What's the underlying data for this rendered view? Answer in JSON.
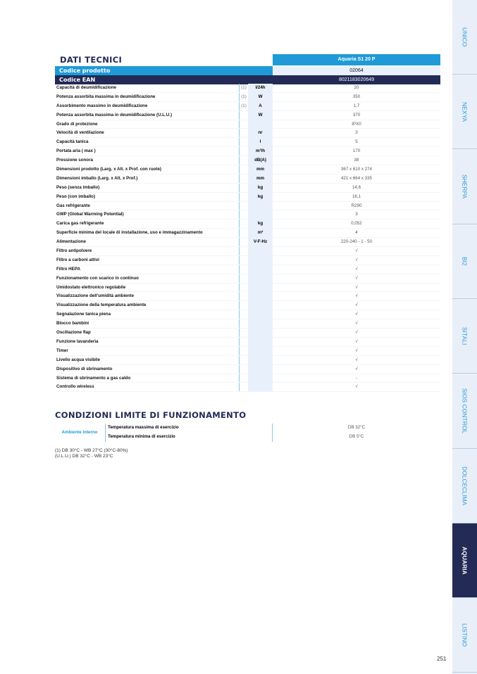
{
  "title": "DATI TECNICI",
  "model": "Aquaria S1 20 P",
  "codice_prodotto": {
    "label": "Codice prodotto",
    "value": "02064"
  },
  "codice_ean": {
    "label": "Codice EAN",
    "value": "8021183020649"
  },
  "rows": [
    {
      "label": "Capacità di deumidificazione",
      "note": "(1)",
      "unit": "l/24h",
      "value": "20"
    },
    {
      "label": "Potenza assorbita massima in deumidificazione",
      "note": "(1)",
      "unit": "W",
      "value": "350"
    },
    {
      "label": "Assorbimento massimo in deumidificazione",
      "note": "(1)",
      "unit": "A",
      "value": "1,7"
    },
    {
      "label": "Potenza assorbita massima in deumidificazione (U.L.U.)",
      "note": "",
      "unit": "W",
      "value": "370"
    },
    {
      "label": "Grado di protezione",
      "note": "",
      "unit": "",
      "value": "IPX0"
    },
    {
      "label": "Velocità di ventilazione",
      "note": "",
      "unit": "nr",
      "value": "3"
    },
    {
      "label": "Capacità tanica",
      "note": "",
      "unit": "l",
      "value": "5"
    },
    {
      "label": "Portata aria ( max )",
      "note": "",
      "unit": "m³/h",
      "value": "170"
    },
    {
      "label": "Pressione sonora",
      "note": "",
      "unit": "dB(A)",
      "value": "38"
    },
    {
      "label": "Dimensioni prodotto (Larg. x Alt. x Prof. con ruote)",
      "note": "",
      "unit": "mm",
      "value": "367 x 610 x 274"
    },
    {
      "label": "Dimensioni imballo (Larg. x Alt. x Prof.)",
      "note": "",
      "unit": "mm",
      "value": "421 x 664 x 335"
    },
    {
      "label": "Peso (senza imballo)",
      "note": "",
      "unit": "kg",
      "value": "14,6"
    },
    {
      "label": "Peso (con imballo)",
      "note": "",
      "unit": "kg",
      "value": "16,1"
    },
    {
      "label": "Gas refrigerante",
      "note": "",
      "unit": "",
      "value": "R290"
    },
    {
      "label": "GWP (Global Warming Potential)",
      "note": "",
      "unit": "",
      "value": "3"
    },
    {
      "label": "Carica gas refrigerante",
      "note": "",
      "unit": "kg",
      "value": "0,052"
    },
    {
      "label": "Superficie minima del locale di installazione, uso e immagazzinamento",
      "note": "",
      "unit": "m²",
      "value": "4"
    },
    {
      "label": "Alimentazione",
      "note": "",
      "unit": "V-F-Hz",
      "value": "220-240 - 1 - 50"
    },
    {
      "label": "Filtro antipolvere",
      "note": "",
      "unit": "",
      "value": "√"
    },
    {
      "label": "Filtro a carboni attivi",
      "note": "",
      "unit": "",
      "value": "√"
    },
    {
      "label": "Filtro HEPA",
      "note": "",
      "unit": "",
      "value": "√"
    },
    {
      "label": "Funzionamento con scarico in continuo",
      "note": "",
      "unit": "",
      "value": "√"
    },
    {
      "label": "Umidostato elettronico regolabile",
      "note": "",
      "unit": "",
      "value": "√"
    },
    {
      "label": "Visualizzazione dell'umidità ambiente",
      "note": "",
      "unit": "",
      "value": "√"
    },
    {
      "label": "Visualizzazione della temperatura ambiente",
      "note": "",
      "unit": "",
      "value": "√"
    },
    {
      "label": "Segnalazione tanica piena",
      "note": "",
      "unit": "",
      "value": "√"
    },
    {
      "label": "Blocco bambini",
      "note": "",
      "unit": "",
      "value": "√"
    },
    {
      "label": "Oscillazione flap",
      "note": "",
      "unit": "",
      "value": "√"
    },
    {
      "label": "Funzione lavanderia",
      "note": "",
      "unit": "",
      "value": "√"
    },
    {
      "label": "Timer",
      "note": "",
      "unit": "",
      "value": "√"
    },
    {
      "label": "Livello acqua visibile",
      "note": "",
      "unit": "",
      "value": "√"
    },
    {
      "label": "Dispositivo di sbrinamento",
      "note": "",
      "unit": "",
      "value": "√"
    },
    {
      "label": "Sistema di sbrinamento a gas caldo",
      "note": "",
      "unit": "",
      "value": "-"
    },
    {
      "label": "Controllo wireless",
      "note": "",
      "unit": "",
      "value": "√"
    }
  ],
  "conditions": {
    "title": "CONDIZIONI LIMITE DI FUNZIONAMENTO",
    "group": "Ambiente interno",
    "items": [
      {
        "label": "Temperatura massima di esercizio",
        "value": "DB 32°C"
      },
      {
        "label": "Temperatura minima di esercizio",
        "value": "DB 5°C"
      }
    ]
  },
  "notes": [
    "(1) DB 30°C - WB 27°C (30°C-80%)",
    "(U.L.U.) DB 32°C - WB 23°C"
  ],
  "sidebar": {
    "tabs": [
      "UNICO",
      "NEXYA",
      "SHERPA",
      "BI2",
      "SITALI",
      "SIOS CONTROL",
      "DOLCECLIMA",
      "AQUARIA",
      "LISTINO"
    ],
    "active": "AQUARIA"
  },
  "page_number": "251",
  "colors": {
    "navy": "#222a55",
    "blue": "#1f9ad6",
    "light": "#e8f1fb"
  }
}
